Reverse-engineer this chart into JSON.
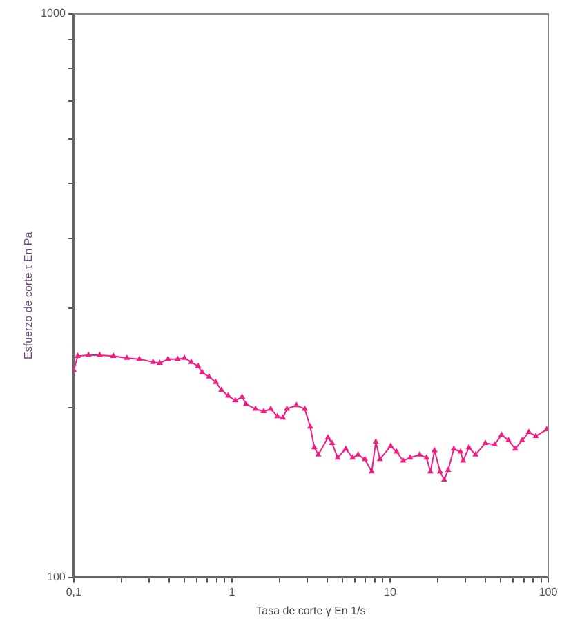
{
  "chart_data": {
    "type": "line",
    "xlabel": "Tasa de corte γ̇ En 1/s",
    "ylabel": "Esfuerzo de corte τ En Pa",
    "log": "xy",
    "grid": false,
    "legend": false,
    "marker": "triangle",
    "line_style": "solid",
    "xlim": [
      0.1,
      100
    ],
    "ylim": [
      100,
      1000
    ],
    "xticks": [
      {
        "value": 0.1,
        "label": "0,1"
      },
      {
        "value": 0.2,
        "label": null
      },
      {
        "value": 0.3,
        "label": null
      },
      {
        "value": 0.4,
        "label": null
      },
      {
        "value": 0.5,
        "label": null
      },
      {
        "value": 0.6,
        "label": null
      },
      {
        "value": 0.7,
        "label": null
      },
      {
        "value": 0.8,
        "label": null
      },
      {
        "value": 0.9,
        "label": null
      },
      1,
      {
        "value": 2,
        "label": null
      },
      {
        "value": 3,
        "label": null
      },
      {
        "value": 4,
        "label": null
      },
      {
        "value": 5,
        "label": null
      },
      {
        "value": 6,
        "label": null
      },
      {
        "value": 7,
        "label": null
      },
      {
        "value": 8,
        "label": null
      },
      {
        "value": 9,
        "label": null
      },
      10,
      {
        "value": 20,
        "label": null
      },
      {
        "value": 30,
        "label": null
      },
      {
        "value": 40,
        "label": null
      },
      {
        "value": 50,
        "label": null
      },
      {
        "value": 60,
        "label": null
      },
      {
        "value": 70,
        "label": null
      },
      {
        "value": 80,
        "label": null
      },
      {
        "value": 90,
        "label": null
      },
      100
    ],
    "yticks": [
      100,
      {
        "value": 200,
        "label": null
      },
      {
        "value": 300,
        "label": null
      },
      {
        "value": 400,
        "label": null
      },
      {
        "value": 500,
        "label": null
      },
      {
        "value": 600,
        "label": null
      },
      {
        "value": 700,
        "label": null
      },
      {
        "value": 800,
        "label": null
      },
      {
        "value": 900,
        "label": null
      },
      1000
    ],
    "series": [
      {
        "color": "#f01e82",
        "x": [
          0.1,
          0.106,
          0.124,
          0.146,
          0.178,
          0.217,
          0.26,
          0.317,
          0.35,
          0.395,
          0.454,
          0.501,
          0.553,
          0.612,
          0.649,
          0.717,
          0.792,
          0.858,
          0.948,
          1.05,
          1.16,
          1.23,
          1.41,
          1.59,
          1.76,
          1.94,
          2.1,
          2.23,
          2.56,
          2.89,
          3.13,
          3.32,
          3.52,
          4.05,
          4.3,
          4.66,
          5.25,
          5.8,
          6.28,
          6.93,
          7.66,
          8.13,
          8.63,
          10.1,
          11,
          12.1,
          13.4,
          15.4,
          17,
          18,
          19.1,
          20.7,
          22,
          23.3,
          25.3,
          27.9,
          29,
          31.5,
          34.7,
          40,
          45.9,
          50.7,
          56.1,
          61.9,
          68.4,
          75.5,
          83.4,
          97.9
        ],
        "values": [
          233,
          247,
          248,
          248,
          247,
          245,
          244,
          241,
          240,
          244,
          244,
          245,
          241,
          237,
          231,
          227,
          222,
          215,
          210,
          206,
          209,
          203,
          199,
          197,
          199,
          193,
          192,
          199,
          202,
          199,
          185,
          170,
          165,
          177,
          173,
          163,
          169,
          163,
          165,
          162,
          154,
          174,
          162,
          171,
          167,
          161,
          163,
          165,
          163,
          154,
          168,
          154,
          149,
          155,
          169,
          167,
          161,
          170,
          165,
          173,
          172,
          179,
          175,
          169,
          175,
          181,
          178,
          183
        ]
      }
    ]
  }
}
